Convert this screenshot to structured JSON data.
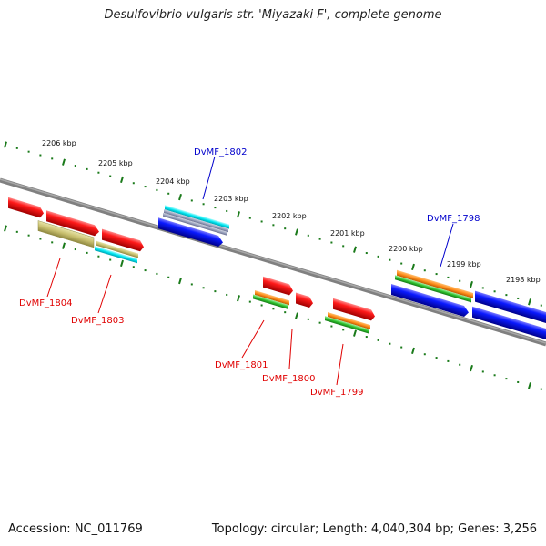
{
  "title": "Desulfovibrio vulgaris str. 'Miyazaki F', complete genome",
  "footer": {
    "accession": "Accession: NC_011769",
    "summary": "Topology: circular; Length: 4,040,304 bp; Genes: 3,256"
  },
  "colors": {
    "backbone": "#808080",
    "ticks": "#1a7a1a",
    "label_red": "#e00000",
    "label_blue": "#0000cc"
  },
  "scale": {
    "labels": [
      "2206 kbp",
      "2205 kbp",
      "2204 kbp",
      "2203 kbp",
      "2202 kbp",
      "2201 kbp",
      "2200 kbp",
      "2199 kbp",
      "2198 kbp"
    ]
  },
  "genes": [
    {
      "name": "DvMF_1802",
      "color": "blue"
    },
    {
      "name": "DvMF_1798",
      "color": "blue"
    },
    {
      "name": "DvMF_1804",
      "color": "red"
    },
    {
      "name": "DvMF_1803",
      "color": "red"
    },
    {
      "name": "DvMF_1801",
      "color": "red"
    },
    {
      "name": "DvMF_1800",
      "color": "red"
    },
    {
      "name": "DvMF_1799",
      "color": "red"
    }
  ]
}
